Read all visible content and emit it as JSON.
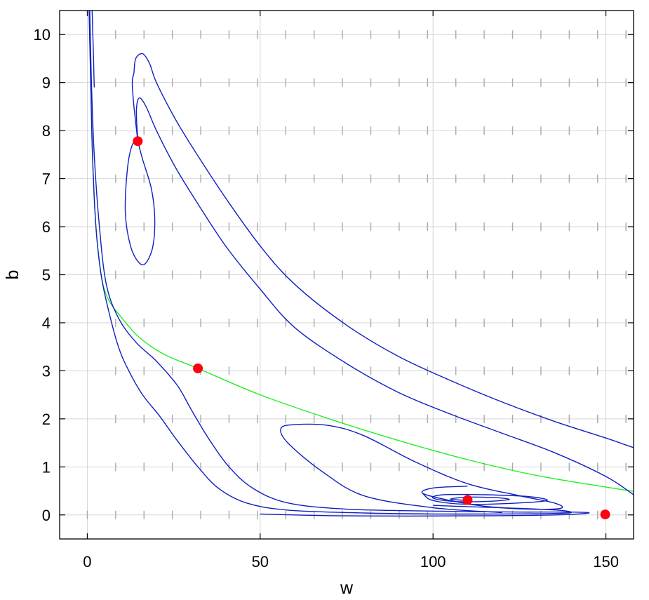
{
  "chart_data": {
    "type": "line",
    "title": "",
    "xlabel": "w",
    "ylabel": "b",
    "xlim": [
      -8,
      158
    ],
    "ylim": [
      -0.5,
      10.5
    ],
    "xticks": [
      0,
      50,
      100,
      150
    ],
    "yticks": [
      0,
      1,
      2,
      3,
      4,
      5,
      6,
      7,
      8,
      9,
      10
    ],
    "grid": true,
    "legend": "none",
    "colors": {
      "trajectory": "#1020c0",
      "separatrix": "#22ee22",
      "equilibrium": "#ff0010",
      "field": "#aaaaaa",
      "grid": "#d6d6d6"
    },
    "equilibria": [
      {
        "w": 14.6,
        "b": 7.78
      },
      {
        "w": 32,
        "b": 3.05
      },
      {
        "w": 110,
        "b": 0.31
      },
      {
        "w": 149.8,
        "b": 0.01
      }
    ],
    "series": [
      {
        "kind": "separatrix",
        "points": [
          [
            0.6,
            10.5
          ],
          [
            1,
            9
          ],
          [
            1.5,
            7.5
          ],
          [
            2.5,
            6
          ],
          [
            4,
            5
          ],
          [
            6,
            4.5
          ],
          [
            10,
            4.1
          ],
          [
            15,
            3.7
          ],
          [
            22,
            3.35
          ],
          [
            32,
            3.05
          ],
          [
            50,
            2.5
          ],
          [
            70,
            2.0
          ],
          [
            90,
            1.55
          ],
          [
            110,
            1.15
          ],
          [
            130,
            0.82
          ],
          [
            150,
            0.58
          ],
          [
            158,
            0.49
          ]
        ]
      },
      {
        "kind": "trajectory",
        "points": [
          [
            0.7,
            10.5
          ],
          [
            1.2,
            9
          ],
          [
            2,
            7.5
          ],
          [
            3.5,
            6
          ],
          [
            5.5,
            4.8
          ],
          [
            9,
            4.1
          ],
          [
            14,
            3.6
          ],
          [
            20,
            3.2
          ],
          [
            26,
            2.7
          ],
          [
            30,
            2.2
          ],
          [
            35,
            1.6
          ],
          [
            41,
            1.0
          ],
          [
            48,
            0.55
          ],
          [
            58,
            0.25
          ],
          [
            75,
            0.12
          ],
          [
            100,
            0.08
          ],
          [
            125,
            0.06
          ],
          [
            140,
            0.06
          ],
          [
            145,
            0.04
          ],
          [
            135,
            0
          ],
          [
            110,
            -0.02
          ],
          [
            75,
            -0.02
          ],
          [
            50,
            0.02
          ]
        ]
      },
      {
        "kind": "trajectory",
        "points": [
          [
            0.5,
            10.5
          ],
          [
            1,
            9
          ],
          [
            1.5,
            7.5
          ],
          [
            2.5,
            6
          ],
          [
            4,
            5
          ],
          [
            6,
            4.3
          ],
          [
            9,
            3.5
          ],
          [
            12,
            3.0
          ],
          [
            16,
            2.5
          ],
          [
            21,
            2.05
          ],
          [
            26,
            1.55
          ],
          [
            32,
            1.0
          ],
          [
            38,
            0.55
          ],
          [
            46,
            0.25
          ],
          [
            58,
            0.1
          ],
          [
            80,
            0.04
          ],
          [
            100,
            0.02
          ],
          [
            120,
            0.02
          ],
          [
            135,
            0.03
          ],
          [
            140,
            0.05
          ],
          [
            136,
            0.1
          ],
          [
            120,
            0.15
          ],
          [
            110,
            0.17
          ],
          [
            100,
            0.2
          ]
        ]
      },
      {
        "kind": "trajectory",
        "points": [
          [
            1.4,
            10.5
          ],
          [
            1.8,
            9.5
          ],
          [
            2,
            8.9
          ]
        ]
      },
      {
        "kind": "trajectory",
        "points": [
          [
            13.5,
            9.2
          ],
          [
            14,
            9.5
          ],
          [
            16,
            9.6
          ],
          [
            18,
            9.4
          ],
          [
            20,
            9.0
          ],
          [
            25,
            8.3
          ],
          [
            30,
            7.7
          ],
          [
            40,
            6.6
          ],
          [
            50,
            5.6
          ],
          [
            60,
            4.8
          ],
          [
            75,
            3.95
          ],
          [
            90,
            3.3
          ],
          [
            105,
            2.8
          ],
          [
            120,
            2.35
          ],
          [
            135,
            1.95
          ],
          [
            150,
            1.6
          ],
          [
            158,
            1.4
          ]
        ]
      },
      {
        "kind": "trajectory",
        "points": [
          [
            14.6,
            7.8
          ],
          [
            14.2,
            8.4
          ],
          [
            15,
            8.68
          ],
          [
            17,
            8.5
          ],
          [
            20,
            8.0
          ],
          [
            25,
            7.3
          ],
          [
            30,
            6.7
          ],
          [
            40,
            5.6
          ],
          [
            50,
            4.7
          ],
          [
            60,
            3.9
          ],
          [
            75,
            3.15
          ],
          [
            90,
            2.55
          ],
          [
            105,
            2.1
          ],
          [
            120,
            1.7
          ],
          [
            135,
            1.3
          ],
          [
            150,
            0.8
          ],
          [
            158,
            0.42
          ]
        ]
      },
      {
        "kind": "trajectory",
        "points": [
          [
            14.6,
            7.78
          ],
          [
            13.5,
            8.5
          ],
          [
            13,
            9.0
          ],
          [
            13.5,
            9.2
          ]
        ]
      },
      {
        "kind": "trajectory",
        "points": [
          [
            14.6,
            7.78
          ],
          [
            16,
            7.4
          ],
          [
            18.5,
            6.8
          ],
          [
            19.5,
            6.2
          ],
          [
            19,
            5.6
          ],
          [
            17,
            5.25
          ],
          [
            15,
            5.25
          ],
          [
            12.5,
            5.6
          ],
          [
            11,
            6.3
          ],
          [
            11.6,
            7.2
          ],
          [
            13,
            7.7
          ],
          [
            14.6,
            7.78
          ]
        ]
      },
      {
        "kind": "trajectory",
        "points": [
          [
            120,
            0.05
          ],
          [
            100,
            0.15
          ],
          [
            80,
            0.4
          ],
          [
            68,
            0.9
          ],
          [
            58,
            1.5
          ],
          [
            56,
            1.8
          ],
          [
            60,
            1.88
          ],
          [
            70,
            1.86
          ],
          [
            80,
            1.65
          ],
          [
            95,
            1.1
          ],
          [
            110,
            0.65
          ],
          [
            125,
            0.4
          ],
          [
            135,
            0.25
          ],
          [
            137,
            0.14
          ],
          [
            128,
            0.12
          ],
          [
            115,
            0.18
          ],
          [
            105,
            0.3
          ],
          [
            97,
            0.45
          ],
          [
            100,
            0.56
          ],
          [
            110,
            0.6
          ]
        ]
      },
      {
        "kind": "trajectory",
        "points": [
          [
            97,
            0.45
          ],
          [
            100,
            0.3
          ],
          [
            110,
            0.22
          ],
          [
            125,
            0.25
          ],
          [
            133,
            0.3
          ],
          [
            128,
            0.38
          ],
          [
            115,
            0.42
          ],
          [
            103,
            0.42
          ],
          [
            100,
            0.35
          ],
          [
            106,
            0.28
          ],
          [
            115,
            0.28
          ],
          [
            122,
            0.32
          ],
          [
            118,
            0.36
          ],
          [
            110,
            0.37
          ],
          [
            105,
            0.33
          ],
          [
            110,
            0.3
          ]
        ]
      }
    ]
  }
}
